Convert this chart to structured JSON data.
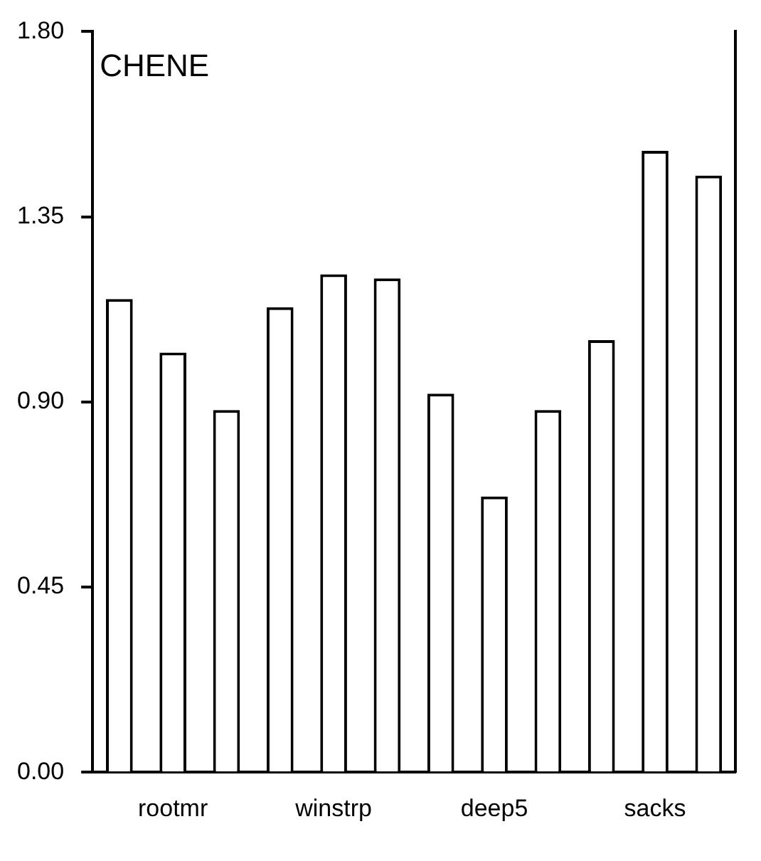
{
  "chart_data": {
    "type": "bar",
    "title": "CHENE",
    "categories": [
      "rootmr",
      "winstrp",
      "deep5",
      "sacks"
    ],
    "series": [
      {
        "color": "#ffffff",
        "values": [
          1.15,
          1.13,
          0.92,
          1.05
        ]
      },
      {
        "color": "#ffffff",
        "values": [
          1.02,
          1.21,
          0.67,
          1.51
        ]
      },
      {
        "color": "#ffffff",
        "values": [
          0.88,
          1.2,
          0.88,
          1.45
        ]
      }
    ],
    "ylim": [
      0,
      1.8
    ],
    "yticks": [
      {
        "value": 0,
        "label": "0.00"
      },
      {
        "value": 0.45,
        "label": "0.45"
      },
      {
        "value": 0.9,
        "label": "0.90"
      },
      {
        "value": 1.35,
        "label": "1.35"
      },
      {
        "value": 1.8,
        "label": "1.80"
      }
    ],
    "grid": false,
    "legend": false
  }
}
